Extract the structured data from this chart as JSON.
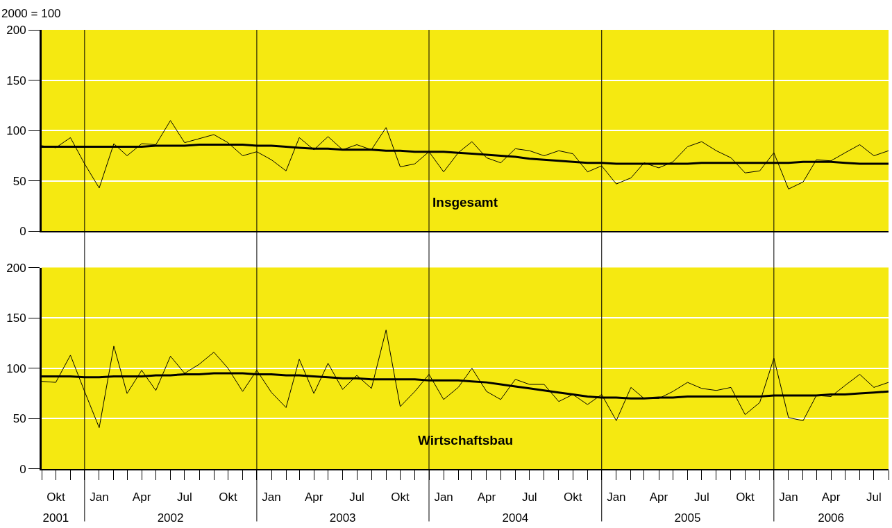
{
  "chart_data": [
    {
      "type": "line",
      "title": "Insgesamt",
      "ylabel": "2000 = 100",
      "tick_labels": "y",
      "grid": "y",
      "marker": "none",
      "line_style": "solid",
      "xlim": [
        "2001-09",
        "2006-08"
      ],
      "ylim": [
        0,
        200
      ],
      "yticks": [
        0,
        50,
        100,
        150,
        200
      ],
      "x": [
        "2001-09",
        "2001-10",
        "2001-11",
        "2001-12",
        "2002-01",
        "2002-02",
        "2002-03",
        "2002-04",
        "2002-05",
        "2002-06",
        "2002-07",
        "2002-08",
        "2002-09",
        "2002-10",
        "2002-11",
        "2002-12",
        "2003-01",
        "2003-02",
        "2003-03",
        "2003-04",
        "2003-05",
        "2003-06",
        "2003-07",
        "2003-08",
        "2003-09",
        "2003-10",
        "2003-11",
        "2003-12",
        "2004-01",
        "2004-02",
        "2004-03",
        "2004-04",
        "2004-05",
        "2004-06",
        "2004-07",
        "2004-08",
        "2004-09",
        "2004-10",
        "2004-11",
        "2004-12",
        "2005-01",
        "2005-02",
        "2005-03",
        "2005-04",
        "2005-05",
        "2005-06",
        "2005-07",
        "2005-08",
        "2005-09",
        "2005-10",
        "2005-11",
        "2005-12",
        "2006-01",
        "2006-02",
        "2006-03",
        "2006-04",
        "2006-05",
        "2006-06",
        "2006-07",
        "2006-08"
      ],
      "series": [
        {
          "color": "#000000",
          "values": [
            85,
            83,
            93,
            67,
            43,
            87,
            75,
            87,
            86,
            110,
            88,
            92,
            96,
            88,
            75,
            79,
            71,
            60,
            93,
            81,
            94,
            81,
            86,
            81,
            103,
            64,
            67,
            79,
            59,
            78,
            89,
            73,
            68,
            82,
            80,
            75,
            80,
            77,
            59,
            65,
            47,
            53,
            68,
            63,
            69,
            84,
            89,
            80,
            73,
            58,
            60,
            78,
            42,
            49,
            71,
            70,
            78,
            86,
            75,
            80
          ]
        },
        {
          "color": "#000000",
          "values": [
            84,
            84,
            84,
            84,
            84,
            84,
            84,
            84,
            85,
            85,
            85,
            86,
            86,
            86,
            86,
            85,
            85,
            84,
            83,
            82,
            82,
            81,
            81,
            81,
            80,
            80,
            79,
            79,
            79,
            78,
            77,
            76,
            75,
            74,
            72,
            71,
            70,
            69,
            68,
            68,
            67,
            67,
            67,
            67,
            67,
            67,
            68,
            68,
            68,
            68,
            68,
            68,
            68,
            69,
            69,
            69,
            68,
            67,
            67,
            67
          ]
        }
      ],
      "ref_lines": [
        {
          "axis": "x",
          "value": "2001-12",
          "color": "#000000"
        },
        {
          "axis": "x",
          "value": "2002-12",
          "color": "#000000"
        },
        {
          "axis": "x",
          "value": "2003-12",
          "color": "#000000"
        },
        {
          "axis": "x",
          "value": "2004-12",
          "color": "#000000"
        },
        {
          "axis": "x",
          "value": "2005-12",
          "color": "#000000"
        }
      ]
    },
    {
      "type": "line",
      "title": "Wirtschaftsbau",
      "grid": "y",
      "marker": "none",
      "line_style": "solid",
      "xlim": [
        "2001-09",
        "2006-08"
      ],
      "ylim": [
        0,
        200
      ],
      "yticks": [
        0,
        50,
        100,
        150,
        200
      ],
      "xticks": [
        {
          "value": "2001-09",
          "label": null
        },
        {
          "value": "2001-10",
          "label": "Okt"
        },
        {
          "value": "2001-11",
          "label": null
        },
        {
          "value": "2001-12",
          "label": null
        },
        {
          "value": "2002-01",
          "label": "Jan"
        },
        {
          "value": "2002-02",
          "label": null
        },
        {
          "value": "2002-03",
          "label": null
        },
        {
          "value": "2002-04",
          "label": "Apr"
        },
        {
          "value": "2002-05",
          "label": null
        },
        {
          "value": "2002-06",
          "label": null
        },
        {
          "value": "2002-07",
          "label": "Jul"
        },
        {
          "value": "2002-08",
          "label": null
        },
        {
          "value": "2002-09",
          "label": null
        },
        {
          "value": "2002-10",
          "label": "Okt"
        },
        {
          "value": "2002-11",
          "label": null
        },
        {
          "value": "2002-12",
          "label": null
        },
        {
          "value": "2003-01",
          "label": "Jan"
        },
        {
          "value": "2003-02",
          "label": null
        },
        {
          "value": "2003-03",
          "label": null
        },
        {
          "value": "2003-04",
          "label": "Apr"
        },
        {
          "value": "2003-05",
          "label": null
        },
        {
          "value": "2003-06",
          "label": null
        },
        {
          "value": "2003-07",
          "label": "Jul"
        },
        {
          "value": "2003-08",
          "label": null
        },
        {
          "value": "2003-09",
          "label": null
        },
        {
          "value": "2003-10",
          "label": "Okt"
        },
        {
          "value": "2003-11",
          "label": null
        },
        {
          "value": "2003-12",
          "label": null
        },
        {
          "value": "2004-01",
          "label": "Jan"
        },
        {
          "value": "2004-02",
          "label": null
        },
        {
          "value": "2004-03",
          "label": null
        },
        {
          "value": "2004-04",
          "label": "Apr"
        },
        {
          "value": "2004-05",
          "label": null
        },
        {
          "value": "2004-06",
          "label": null
        },
        {
          "value": "2004-07",
          "label": "Jul"
        },
        {
          "value": "2004-08",
          "label": null
        },
        {
          "value": "2004-09",
          "label": null
        },
        {
          "value": "2004-10",
          "label": "Okt"
        },
        {
          "value": "2004-11",
          "label": null
        },
        {
          "value": "2004-12",
          "label": null
        },
        {
          "value": "2005-01",
          "label": "Jan"
        },
        {
          "value": "2005-02",
          "label": null
        },
        {
          "value": "2005-03",
          "label": null
        },
        {
          "value": "2005-04",
          "label": "Apr"
        },
        {
          "value": "2005-05",
          "label": null
        },
        {
          "value": "2005-06",
          "label": null
        },
        {
          "value": "2005-07",
          "label": "Jul"
        },
        {
          "value": "2005-08",
          "label": null
        },
        {
          "value": "2005-09",
          "label": null
        },
        {
          "value": "2005-10",
          "label": "Okt"
        },
        {
          "value": "2005-11",
          "label": null
        },
        {
          "value": "2005-12",
          "label": null
        },
        {
          "value": "2006-01",
          "label": "Jan"
        },
        {
          "value": "2006-02",
          "label": null
        },
        {
          "value": "2006-03",
          "label": null
        },
        {
          "value": "2006-04",
          "label": "Apr"
        },
        {
          "value": "2006-05",
          "label": null
        },
        {
          "value": "2006-06",
          "label": null
        },
        {
          "value": "2006-07",
          "label": "Jul"
        },
        {
          "value": "2006-08",
          "label": null
        }
      ],
      "x2lim": [
        "2001-09",
        "2006-08"
      ],
      "x2ticks": [
        {
          "value": "2001-10",
          "label": "2001"
        },
        {
          "value": "2002-06",
          "label": "2002"
        },
        {
          "value": "2003-06",
          "label": "2003"
        },
        {
          "value": "2004-06",
          "label": "2004"
        },
        {
          "value": "2005-06",
          "label": "2005"
        },
        {
          "value": "2006-04",
          "label": "2006"
        }
      ],
      "x": [
        "2001-09",
        "2001-10",
        "2001-11",
        "2001-12",
        "2002-01",
        "2002-02",
        "2002-03",
        "2002-04",
        "2002-05",
        "2002-06",
        "2002-07",
        "2002-08",
        "2002-09",
        "2002-10",
        "2002-11",
        "2002-12",
        "2003-01",
        "2003-02",
        "2003-03",
        "2003-04",
        "2003-05",
        "2003-06",
        "2003-07",
        "2003-08",
        "2003-09",
        "2003-10",
        "2003-11",
        "2003-12",
        "2004-01",
        "2004-02",
        "2004-03",
        "2004-04",
        "2004-05",
        "2004-06",
        "2004-07",
        "2004-08",
        "2004-09",
        "2004-10",
        "2004-11",
        "2004-12",
        "2005-01",
        "2005-02",
        "2005-03",
        "2005-04",
        "2005-05",
        "2005-06",
        "2005-07",
        "2005-08",
        "2005-09",
        "2005-10",
        "2005-11",
        "2005-12",
        "2006-01",
        "2006-02",
        "2006-03",
        "2006-04",
        "2006-05",
        "2006-06",
        "2006-07",
        "2006-08"
      ],
      "series": [
        {
          "color": "#000000",
          "values": [
            87,
            86,
            113,
            77,
            41,
            122,
            75,
            98,
            78,
            112,
            95,
            104,
            116,
            100,
            77,
            98,
            76,
            61,
            109,
            75,
            105,
            79,
            93,
            80,
            138,
            62,
            77,
            94,
            69,
            81,
            100,
            77,
            69,
            89,
            84,
            84,
            67,
            74,
            64,
            74,
            48,
            81,
            70,
            70,
            77,
            86,
            80,
            78,
            81,
            54,
            66,
            110,
            51,
            48,
            73,
            72,
            83,
            94,
            81,
            86
          ]
        },
        {
          "color": "#000000",
          "values": [
            92,
            92,
            92,
            91,
            91,
            92,
            92,
            92,
            93,
            93,
            94,
            94,
            95,
            95,
            95,
            94,
            94,
            93,
            93,
            92,
            91,
            90,
            90,
            89,
            89,
            89,
            89,
            88,
            88,
            88,
            87,
            86,
            84,
            82,
            80,
            78,
            76,
            74,
            72,
            71,
            71,
            70,
            70,
            71,
            71,
            72,
            72,
            72,
            72,
            72,
            72,
            73,
            73,
            73,
            73,
            74,
            74,
            75,
            76,
            77
          ]
        }
      ],
      "ref_lines": [
        {
          "axis": "x",
          "value": "2001-12",
          "color": "#000000"
        },
        {
          "axis": "x",
          "value": "2002-12",
          "color": "#000000"
        },
        {
          "axis": "x",
          "value": "2003-12",
          "color": "#000000"
        },
        {
          "axis": "x",
          "value": "2004-12",
          "color": "#000000"
        },
        {
          "axis": "x",
          "value": "2005-12",
          "color": "#000000"
        }
      ]
    }
  ]
}
